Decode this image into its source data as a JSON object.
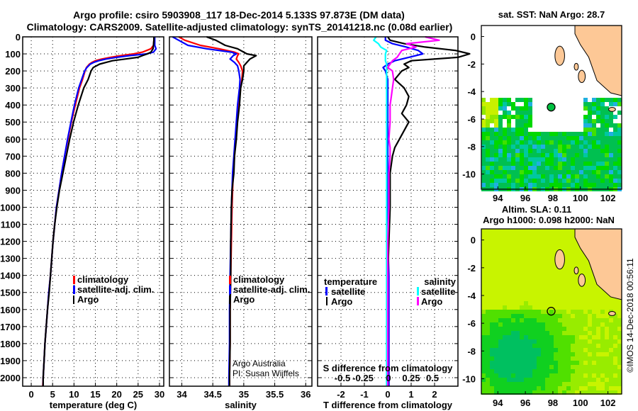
{
  "title": {
    "line1": "Argo profile: csiro 5903908_117 18-Dec-2014 5.133S 97.873E (DM data)",
    "line2": "Climatology: CARS2009. Satellite-adjusted climatology: synTS_20141218.nc (0.08d earlier)"
  },
  "credits": {
    "line1": "Argo Australia",
    "line2": "PI: Susan Wijffels",
    "imos": "©IMOS 14-Dec-2018 00:56:11"
  },
  "colors": {
    "climatology": "#ff0000",
    "satellite": "#0000ff",
    "argo": "#000000",
    "sal_satellite": "#00ffff",
    "sal_argo": "#ff00ff",
    "land": "#fdc896",
    "grid": "#000000"
  },
  "chart_data": [
    {
      "id": "temperature",
      "type": "line",
      "xlabel": "temperature (deg C)",
      "ylabel": "",
      "xlim": [
        -2,
        31
      ],
      "ylim": [
        2050,
        0
      ],
      "xticks": [
        0,
        5,
        10,
        15,
        20,
        25,
        30
      ],
      "yticks": [
        0,
        100,
        200,
        300,
        400,
        500,
        600,
        700,
        800,
        900,
        1000,
        1100,
        1200,
        1300,
        1400,
        1500,
        1600,
        1700,
        1800,
        1900,
        2000
      ],
      "grid": true,
      "legend": {
        "placement": "center-bottom",
        "entries": [
          "climatology",
          "satellite-adj. clim.",
          "Argo"
        ]
      },
      "depth": [
        0,
        20,
        50,
        70,
        90,
        100,
        110,
        120,
        130,
        140,
        150,
        160,
        180,
        200,
        250,
        300,
        400,
        500,
        600,
        700,
        800,
        900,
        1000,
        1100,
        1200,
        1300,
        1400,
        1500,
        1600,
        1700,
        1800,
        1900,
        2000,
        2050
      ],
      "series": [
        {
          "name": "climatology",
          "color": "#ff0000",
          "values": [
            28.8,
            28.7,
            28.6,
            28.0,
            26.0,
            24.0,
            21.0,
            18.5,
            16.5,
            15.0,
            14.2,
            13.6,
            12.9,
            12.6,
            12.0,
            11.3,
            10.3,
            9.4,
            8.6,
            7.8,
            7.1,
            6.5,
            5.9,
            5.5,
            5.1,
            4.8,
            4.5,
            4.1,
            3.8,
            3.5,
            3.2,
            3.0,
            2.8,
            2.7
          ]
        },
        {
          "name": "satellite-adj. clim.",
          "color": "#0000ff",
          "values": [
            28.9,
            28.9,
            28.9,
            29.2,
            28.6,
            27.0,
            23.0,
            20.0,
            17.5,
            15.8,
            14.6,
            13.8,
            13.0,
            12.5,
            11.8,
            11.1,
            10.1,
            9.3,
            8.5,
            7.8,
            7.1,
            6.5,
            5.9,
            5.5,
            5.1,
            4.8,
            4.5,
            4.1,
            3.8,
            3.5,
            3.2,
            3.0,
            2.8,
            2.8
          ]
        },
        {
          "name": "Argo",
          "color": "#000000",
          "values": [
            28.7,
            28.7,
            28.6,
            28.5,
            28.0,
            27.2,
            26.0,
            25.0,
            22.0,
            19.0,
            17.5,
            16.0,
            14.5,
            14.0,
            13.3,
            12.3,
            11.0,
            9.9,
            9.0,
            8.2,
            7.4,
            6.6,
            6.0,
            5.5,
            5.1,
            4.8,
            4.5,
            4.2,
            3.8,
            3.5,
            3.2,
            3.0,
            2.8,
            2.8
          ]
        }
      ]
    },
    {
      "id": "salinity",
      "type": "line",
      "xlabel": "salinity",
      "xlim": [
        33.8,
        36.1
      ],
      "ylim": [
        2050,
        0
      ],
      "xticks": [
        34,
        34.5,
        35,
        35.5,
        36
      ],
      "xticklabels": [
        "34",
        "34.5",
        "35",
        "35.5",
        "36"
      ],
      "grid": true,
      "legend": {
        "placement": "right-bottom",
        "entries": [
          "climatology",
          "satellite-adj. clim.",
          "Argo"
        ]
      },
      "depth": [
        0,
        20,
        50,
        70,
        90,
        100,
        110,
        130,
        150,
        170,
        200,
        250,
        300,
        400,
        500,
        600,
        700,
        800,
        900,
        1000,
        1200,
        1400,
        1600,
        1800,
        2000,
        2050
      ],
      "series": [
        {
          "name": "climatology",
          "color": "#ff0000",
          "values": [
            33.95,
            34.05,
            34.3,
            34.6,
            34.85,
            34.92,
            34.9,
            34.88,
            34.92,
            34.95,
            34.98,
            34.97,
            34.95,
            34.92,
            34.89,
            34.87,
            34.85,
            34.83,
            34.82,
            34.81,
            34.8,
            34.79,
            34.78,
            34.78,
            34.77,
            34.77
          ]
        },
        {
          "name": "satellite-adj. clim.",
          "color": "#0000ff",
          "values": [
            33.85,
            33.95,
            34.1,
            34.4,
            34.8,
            34.88,
            34.83,
            34.78,
            34.85,
            34.9,
            34.92,
            34.94,
            34.93,
            34.9,
            34.88,
            34.86,
            34.84,
            34.82,
            34.81,
            34.8,
            34.79,
            34.78,
            34.77,
            34.77,
            34.76,
            34.76
          ]
        },
        {
          "name": "Argo",
          "color": "#000000",
          "values": [
            34.4,
            34.55,
            34.7,
            34.9,
            35.0,
            35.05,
            35.2,
            35.1,
            35.05,
            35.0,
            35.0,
            34.98,
            34.95,
            34.93,
            34.9,
            34.88,
            34.85,
            34.84,
            34.81,
            34.8,
            34.79,
            34.79,
            34.78,
            34.78,
            34.77,
            34.77
          ]
        }
      ]
    },
    {
      "id": "difference",
      "type": "line",
      "xlabel": "T difference from climatology",
      "xlim": [
        -3,
        3
      ],
      "ylim": [
        2050,
        0
      ],
      "xticks": [
        -2,
        -1,
        0,
        1,
        2
      ],
      "secondary_xlabel": "S difference from climatology",
      "secondary_xticks": [
        "-0.5",
        "-0.25",
        "0",
        "0.25",
        "0.5"
      ],
      "grid": true,
      "legend": {
        "placement": "bottom",
        "groups": [
          {
            "title": "temperature",
            "entries": [
              "satellite",
              "Argo"
            ]
          },
          {
            "title": "salinity",
            "entries": [
              "satellite",
              "Argo"
            ]
          }
        ]
      },
      "depth": [
        0,
        20,
        40,
        60,
        80,
        100,
        120,
        140,
        160,
        180,
        200,
        250,
        300,
        350,
        400,
        450,
        500,
        600,
        650,
        700,
        800,
        900,
        1000,
        1200,
        1400,
        1600,
        1800,
        2000,
        2050
      ],
      "series": [
        {
          "name": "T satellite",
          "color": "#0000ff",
          "values": [
            -0.1,
            -0.1,
            0.2,
            0.8,
            1.3,
            1.5,
            0.9,
            0.3,
            0.0,
            -0.2,
            -0.1,
            0.0,
            0.0,
            0.0,
            0.0,
            0.0,
            0.0,
            0.0,
            0.0,
            0.0,
            0.0,
            0.0,
            0.0,
            0.0,
            0.05,
            0.05,
            0.05,
            0.05,
            0.05
          ]
        },
        {
          "name": "T Argo",
          "color": "#000000",
          "values": [
            0.0,
            0.1,
            0.7,
            1.6,
            2.9,
            3.5,
            3.0,
            1.0,
            0.7,
            0.9,
            0.6,
            0.3,
            0.7,
            0.9,
            0.8,
            0.6,
            0.9,
            0.5,
            0.3,
            0.2,
            0.1,
            0.1,
            0.1,
            0.05,
            0.0,
            0.0,
            0.0,
            0.0,
            0.0
          ]
        },
        {
          "name": "S satellite",
          "color": "#00ffff",
          "values": [
            -0.5,
            -0.6,
            -0.4,
            -0.3,
            -0.05,
            -0.1,
            -0.1,
            -0.1,
            -0.05,
            -0.05,
            -0.05,
            -0.05,
            -0.05,
            -0.05,
            -0.05,
            -0.05,
            -0.05,
            -0.05,
            -0.05,
            -0.05,
            -0.05,
            -0.05,
            -0.05,
            -0.05,
            -0.05,
            -0.05,
            -0.05,
            -0.05,
            -0.05
          ]
        },
        {
          "name": "S Argo",
          "color": "#ff00ff",
          "values": [
            1.6,
            2.2,
            0.8,
            1.2,
            0.6,
            0.5,
            0.4,
            0.2,
            0.1,
            0.0,
            0.2,
            0.25,
            0.2,
            0.15,
            0.1,
            0.1,
            0.1,
            0.05,
            0.1,
            0.1,
            0.05,
            0.05,
            0.05,
            0.0,
            0.0,
            0.0,
            0.0,
            0.0,
            0.0
          ]
        }
      ]
    },
    {
      "id": "sst-map",
      "type": "heatmap",
      "title": "sat. SST: NaN Argo: 28.7",
      "xlim": [
        92.8,
        103
      ],
      "ylim": [
        -11.1,
        0.8
      ],
      "xticks": [
        94,
        96,
        98,
        100,
        102
      ],
      "yticks": [
        0,
        -2,
        -4,
        -6,
        -8,
        -10
      ],
      "marker": {
        "lon": 97.873,
        "lat": -5.133
      }
    },
    {
      "id": "sla-map",
      "type": "heatmap",
      "title": "Altim. SLA: 0.11",
      "subtitle": "Argo h1000: 0.098 h2000: NaN",
      "xlim": [
        92.8,
        103
      ],
      "ylim": [
        -11.1,
        0.8
      ],
      "xticks": [
        94,
        96,
        98,
        100,
        102
      ],
      "yticks": [
        0,
        -2,
        -4,
        -6,
        -8,
        -10
      ],
      "marker": {
        "lon": 97.873,
        "lat": -5.133
      }
    }
  ]
}
